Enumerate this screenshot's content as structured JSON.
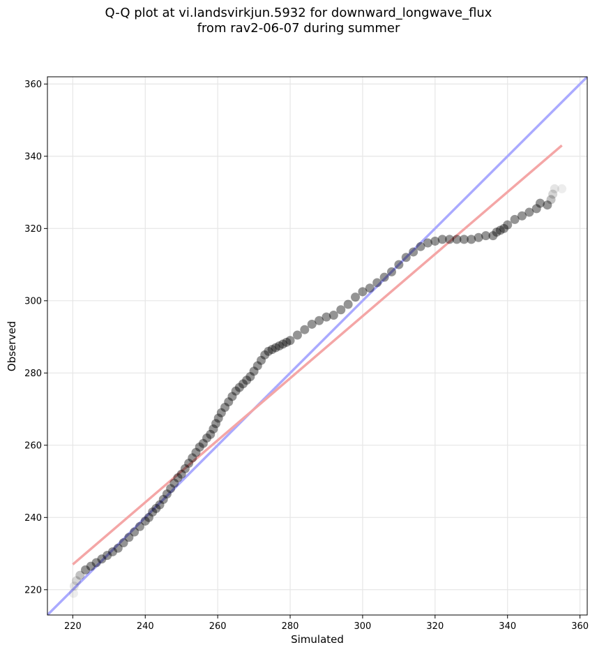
{
  "chart_data": {
    "type": "scatter",
    "title": "Q-Q plot at vi.landsvirkjun.5932 for downward_longwave_flux",
    "subtitle": "from rav2-06-07 during summer",
    "xlabel": "Simulated",
    "ylabel": "Observed",
    "xlim": [
      213,
      362
    ],
    "ylim": [
      213,
      362
    ],
    "xticks": [
      220,
      240,
      260,
      280,
      300,
      320,
      340,
      360
    ],
    "yticks": [
      220,
      240,
      260,
      280,
      300,
      320,
      340,
      360
    ],
    "grid": true,
    "colors": {
      "points": "#000000",
      "identity_line": "#aaaaff",
      "fit_line": "#f4a6a6"
    },
    "lines": [
      {
        "kind": "identity",
        "x": [
          213,
          362
        ],
        "y": [
          213,
          362
        ]
      },
      {
        "kind": "fit",
        "x": [
          220,
          355
        ],
        "y": [
          227,
          343
        ]
      }
    ],
    "points": {
      "x": [
        220.2,
        220.4,
        221,
        222,
        223.5,
        225,
        226.5,
        228,
        229.5,
        231,
        232.5,
        234,
        235.5,
        237,
        238.5,
        240,
        241,
        242,
        243,
        244,
        245,
        246,
        247,
        248,
        249,
        250,
        251,
        252,
        253,
        254,
        255,
        256,
        257,
        258,
        258.8,
        259.5,
        260.2,
        261,
        262,
        263,
        264,
        265,
        266,
        267,
        268,
        269,
        270,
        271,
        272,
        273,
        274,
        275,
        276,
        277,
        278,
        279,
        280,
        282,
        284,
        286,
        288,
        290,
        292,
        294,
        296,
        298,
        300,
        302,
        304,
        306,
        308,
        310,
        312,
        314,
        316,
        318,
        320,
        322,
        324,
        326,
        328,
        330,
        332,
        334,
        336,
        337,
        338,
        339,
        340,
        342,
        344,
        346,
        348,
        349,
        351,
        352,
        352.5,
        353,
        355
      ],
      "y": [
        219,
        221,
        222.5,
        224,
        225.5,
        226.5,
        227.5,
        228.5,
        229.5,
        230.5,
        231.5,
        233,
        234.5,
        236,
        237.5,
        239,
        240,
        241.5,
        242.5,
        243.5,
        245,
        246.5,
        248,
        249.5,
        251,
        252,
        253.5,
        255,
        256.5,
        258,
        259.5,
        260.5,
        262,
        263,
        264.5,
        266,
        267.5,
        269,
        270.5,
        272,
        273.5,
        275,
        276,
        277,
        278,
        279,
        280.5,
        282,
        283.5,
        285,
        286,
        286.5,
        287,
        287.5,
        288,
        288.5,
        289,
        290.5,
        292,
        293.5,
        294.5,
        295.5,
        296,
        297.5,
        299,
        301,
        302.5,
        303.5,
        305,
        306.5,
        308,
        310,
        312,
        313.5,
        315,
        316,
        316.5,
        317,
        317,
        317,
        317,
        317,
        317.5,
        318,
        318,
        319,
        319.5,
        320,
        321,
        322.5,
        323.5,
        324.5,
        325.5,
        327,
        326.5,
        328,
        329.5,
        331,
        331
      ]
    }
  }
}
